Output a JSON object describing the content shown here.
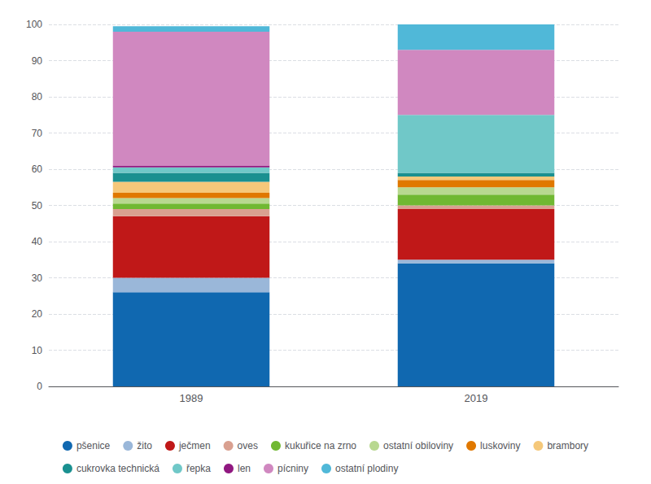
{
  "chart_data": {
    "type": "bar",
    "stacked": true,
    "categories": [
      "1989",
      "2019"
    ],
    "series": [
      {
        "name": "pšenice",
        "color": "#1068B0",
        "values": [
          26.0,
          34.0
        ]
      },
      {
        "name": "žito",
        "color": "#9AB7D9",
        "values": [
          4.0,
          1.0
        ]
      },
      {
        "name": "ječmen",
        "color": "#C01818",
        "values": [
          17.0,
          14.0
        ]
      },
      {
        "name": "oves",
        "color": "#D9A090",
        "values": [
          2.0,
          1.0
        ]
      },
      {
        "name": "kukuřice na zrno",
        "color": "#70B832",
        "values": [
          1.5,
          3.0
        ]
      },
      {
        "name": "ostatní obiloviny",
        "color": "#B8D890",
        "values": [
          1.5,
          2.0
        ]
      },
      {
        "name": "luskoviny",
        "color": "#E07800",
        "values": [
          1.5,
          2.0
        ]
      },
      {
        "name": "brambory",
        "color": "#F5C87A",
        "values": [
          3.0,
          1.0
        ]
      },
      {
        "name": "cukrovka technická",
        "color": "#1A9090",
        "values": [
          2.5,
          1.0
        ]
      },
      {
        "name": "řepka",
        "color": "#70C8C8",
        "values": [
          1.5,
          16.0
        ]
      },
      {
        "name": "len",
        "color": "#901880",
        "values": [
          0.5,
          0.0
        ]
      },
      {
        "name": "pícniny",
        "color": "#D088C0",
        "values": [
          37.0,
          18.0
        ]
      },
      {
        "name": "ostatní plodiny",
        "color": "#50B8D8",
        "values": [
          1.5,
          7.0
        ]
      }
    ],
    "ylim": [
      0,
      100
    ],
    "yticks": [
      0,
      10,
      20,
      30,
      40,
      50,
      60,
      70,
      80,
      90,
      100
    ],
    "grid": true,
    "legend": "bottom"
  }
}
